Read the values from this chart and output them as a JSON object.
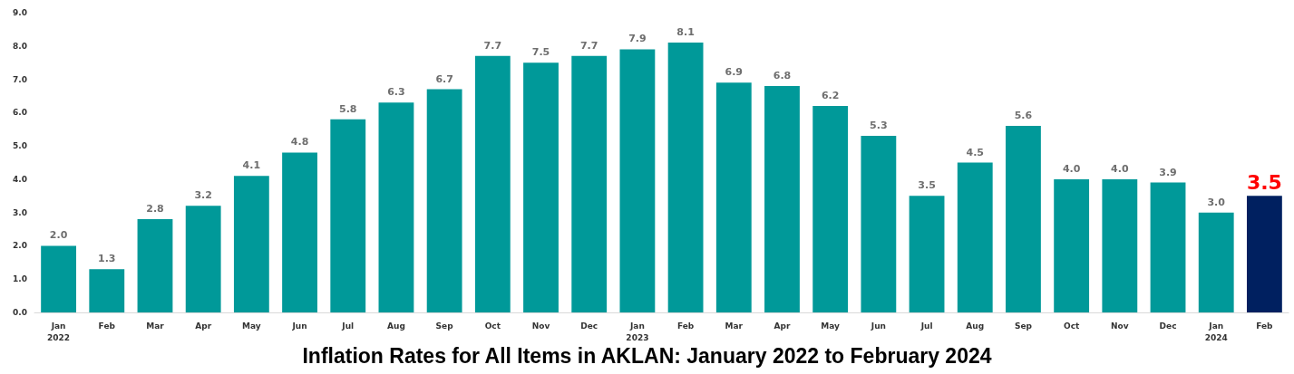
{
  "chart_data": {
    "type": "bar",
    "title": "Inflation Rates for All Items in AKLAN: January 2022 to February 2024",
    "categories": [
      "Jan\n2022",
      "Feb",
      "Mar",
      "Apr",
      "May",
      "Jun",
      "Jul",
      "Aug",
      "Sep",
      "Oct",
      "Nov",
      "Dec",
      "Jan\n2023",
      "Feb",
      "Mar",
      "Apr",
      "May",
      "Jun",
      "Jul",
      "Aug",
      "Sep",
      "Oct",
      "Nov",
      "Dec",
      "Jan\n2024",
      "Feb"
    ],
    "values": [
      2.0,
      1.3,
      2.8,
      3.2,
      4.1,
      4.8,
      5.8,
      6.3,
      6.7,
      7.7,
      7.5,
      7.7,
      7.9,
      8.1,
      6.9,
      6.8,
      6.2,
      5.3,
      3.5,
      4.5,
      5.6,
      4.0,
      4.0,
      3.9,
      3.0,
      3.5
    ],
    "colors": [
      "#009999",
      "#009999",
      "#009999",
      "#009999",
      "#009999",
      "#009999",
      "#009999",
      "#009999",
      "#009999",
      "#009999",
      "#009999",
      "#009999",
      "#009999",
      "#009999",
      "#009999",
      "#009999",
      "#009999",
      "#009999",
      "#009999",
      "#009999",
      "#009999",
      "#009999",
      "#009999",
      "#009999",
      "#009999",
      "#002060"
    ],
    "value_labels": [
      "2.0",
      "1.3",
      "2.8",
      "3.2",
      "4.1",
      "4.8",
      "5.8",
      "6.3",
      "6.7",
      "7.7",
      "7.5",
      "7.7",
      "7.9",
      "8.1",
      "6.9",
      "6.8",
      "6.2",
      "5.3",
      "3.5",
      "4.5",
      "5.6",
      "4.0",
      "4.0",
      "3.9",
      "3.0",
      "3.5"
    ],
    "ylim": [
      0,
      9
    ],
    "yticks": [
      {
        "value": 0,
        "label": "0.0"
      },
      {
        "value": 1,
        "label": "1.0"
      },
      {
        "value": 2,
        "label": "2.0"
      },
      {
        "value": 3,
        "label": "3.0"
      },
      {
        "value": 4,
        "label": "4.0"
      },
      {
        "value": 5,
        "label": "5.0"
      },
      {
        "value": 6,
        "label": "6.0"
      },
      {
        "value": 7,
        "label": "7.0"
      },
      {
        "value": 8,
        "label": "8.0"
      },
      {
        "value": 9,
        "label": "9.0"
      }
    ],
    "relative": false
  }
}
